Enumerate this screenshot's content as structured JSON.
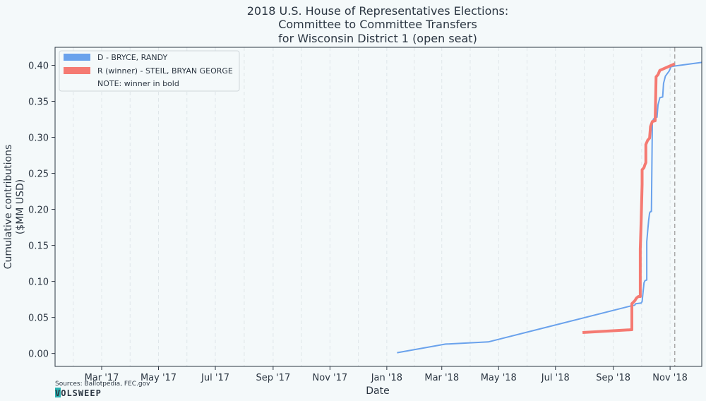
{
  "chart_data": {
    "type": "line",
    "title": [
      "2018 U.S. House of Representatives Elections:",
      "Committee to Committee Transfers",
      "for Wisconsin District 1 (open seat)"
    ],
    "xlabel": "Date",
    "ylabel": [
      "Cumulative contributions",
      "($MM USD)"
    ],
    "x_type": "date",
    "xlim": [
      "2017-01-10",
      "2018-12-05"
    ],
    "ylim": [
      -0.018,
      0.425
    ],
    "x_ticks": [
      {
        "date": "2017-03-01",
        "label": "Mar '17"
      },
      {
        "date": "2017-05-01",
        "label": "May '17"
      },
      {
        "date": "2017-07-01",
        "label": "Jul '17"
      },
      {
        "date": "2017-09-01",
        "label": "Sep '17"
      },
      {
        "date": "2017-11-01",
        "label": "Nov '17"
      },
      {
        "date": "2018-01-01",
        "label": "Jan '18"
      },
      {
        "date": "2018-03-01",
        "label": "Mar '18"
      },
      {
        "date": "2018-05-01",
        "label": "May '18"
      },
      {
        "date": "2018-07-01",
        "label": "Jul '18"
      },
      {
        "date": "2018-09-01",
        "label": "Sep '18"
      },
      {
        "date": "2018-11-01",
        "label": "Nov '18"
      }
    ],
    "y_ticks": [
      0.0,
      0.05,
      0.1,
      0.15,
      0.2,
      0.25,
      0.3,
      0.35,
      0.4
    ],
    "y_tick_labels": [
      "0.00",
      "0.05",
      "0.10",
      "0.15",
      "0.20",
      "0.25",
      "0.30",
      "0.35",
      "0.40"
    ],
    "grid": "vertical dashed",
    "legend_position": "top-left",
    "legend_note": "NOTE: winner in bold",
    "vline": {
      "date": "2018-11-06",
      "style": "dashed",
      "color": "#aaaaaa"
    },
    "series": [
      {
        "name": "D - BRYCE, RANDY",
        "color": "#6aa2ec",
        "bold": false,
        "points": [
          [
            "2018-01-12",
            0.001
          ],
          [
            "2018-03-05",
            0.013
          ],
          [
            "2018-04-20",
            0.016
          ],
          [
            "2018-09-20",
            0.066
          ],
          [
            "2018-09-24",
            0.067
          ],
          [
            "2018-09-25",
            0.069
          ],
          [
            "2018-10-01",
            0.07
          ],
          [
            "2018-10-02",
            0.072
          ],
          [
            "2018-10-04",
            0.098
          ],
          [
            "2018-10-05",
            0.101
          ],
          [
            "2018-10-07",
            0.102
          ],
          [
            "2018-10-07",
            0.155
          ],
          [
            "2018-10-08",
            0.17
          ],
          [
            "2018-10-09",
            0.185
          ],
          [
            "2018-10-10",
            0.195
          ],
          [
            "2018-10-11",
            0.197
          ],
          [
            "2018-10-12",
            0.197
          ],
          [
            "2018-10-13",
            0.32
          ],
          [
            "2018-10-14",
            0.325
          ],
          [
            "2018-10-16",
            0.328
          ],
          [
            "2018-10-18",
            0.328
          ],
          [
            "2018-10-19",
            0.345
          ],
          [
            "2018-10-21",
            0.355
          ],
          [
            "2018-10-24",
            0.356
          ],
          [
            "2018-10-25",
            0.375
          ],
          [
            "2018-10-27",
            0.385
          ],
          [
            "2018-10-31",
            0.392
          ],
          [
            "2018-11-02",
            0.398
          ],
          [
            "2018-11-06",
            0.399
          ],
          [
            "2018-12-05",
            0.404
          ]
        ]
      },
      {
        "name": "R (winner) - STEIL, BRYAN GEORGE",
        "color": "#f57a72",
        "bold": true,
        "points": [
          [
            "2018-07-30",
            0.029
          ],
          [
            "2018-09-21",
            0.033
          ],
          [
            "2018-09-21",
            0.069
          ],
          [
            "2018-09-24",
            0.073
          ],
          [
            "2018-09-26",
            0.077
          ],
          [
            "2018-09-28",
            0.079
          ],
          [
            "2018-09-30",
            0.079
          ],
          [
            "2018-09-30",
            0.145
          ],
          [
            "2018-10-01",
            0.185
          ],
          [
            "2018-10-02",
            0.235
          ],
          [
            "2018-10-02",
            0.255
          ],
          [
            "2018-10-04",
            0.258
          ],
          [
            "2018-10-05",
            0.262
          ],
          [
            "2018-10-06",
            0.265
          ],
          [
            "2018-10-06",
            0.29
          ],
          [
            "2018-10-08",
            0.296
          ],
          [
            "2018-10-10",
            0.299
          ],
          [
            "2018-10-11",
            0.315
          ],
          [
            "2018-10-13",
            0.322
          ],
          [
            "2018-10-16",
            0.323
          ],
          [
            "2018-10-17",
            0.384
          ],
          [
            "2018-10-19",
            0.387
          ],
          [
            "2018-10-21",
            0.393
          ],
          [
            "2018-10-30",
            0.398
          ],
          [
            "2018-11-06",
            0.402
          ]
        ]
      }
    ]
  },
  "footer": {
    "sources": "Sources: Ballotpedia, FEC.gov",
    "brand": "VOLSWEEP"
  }
}
